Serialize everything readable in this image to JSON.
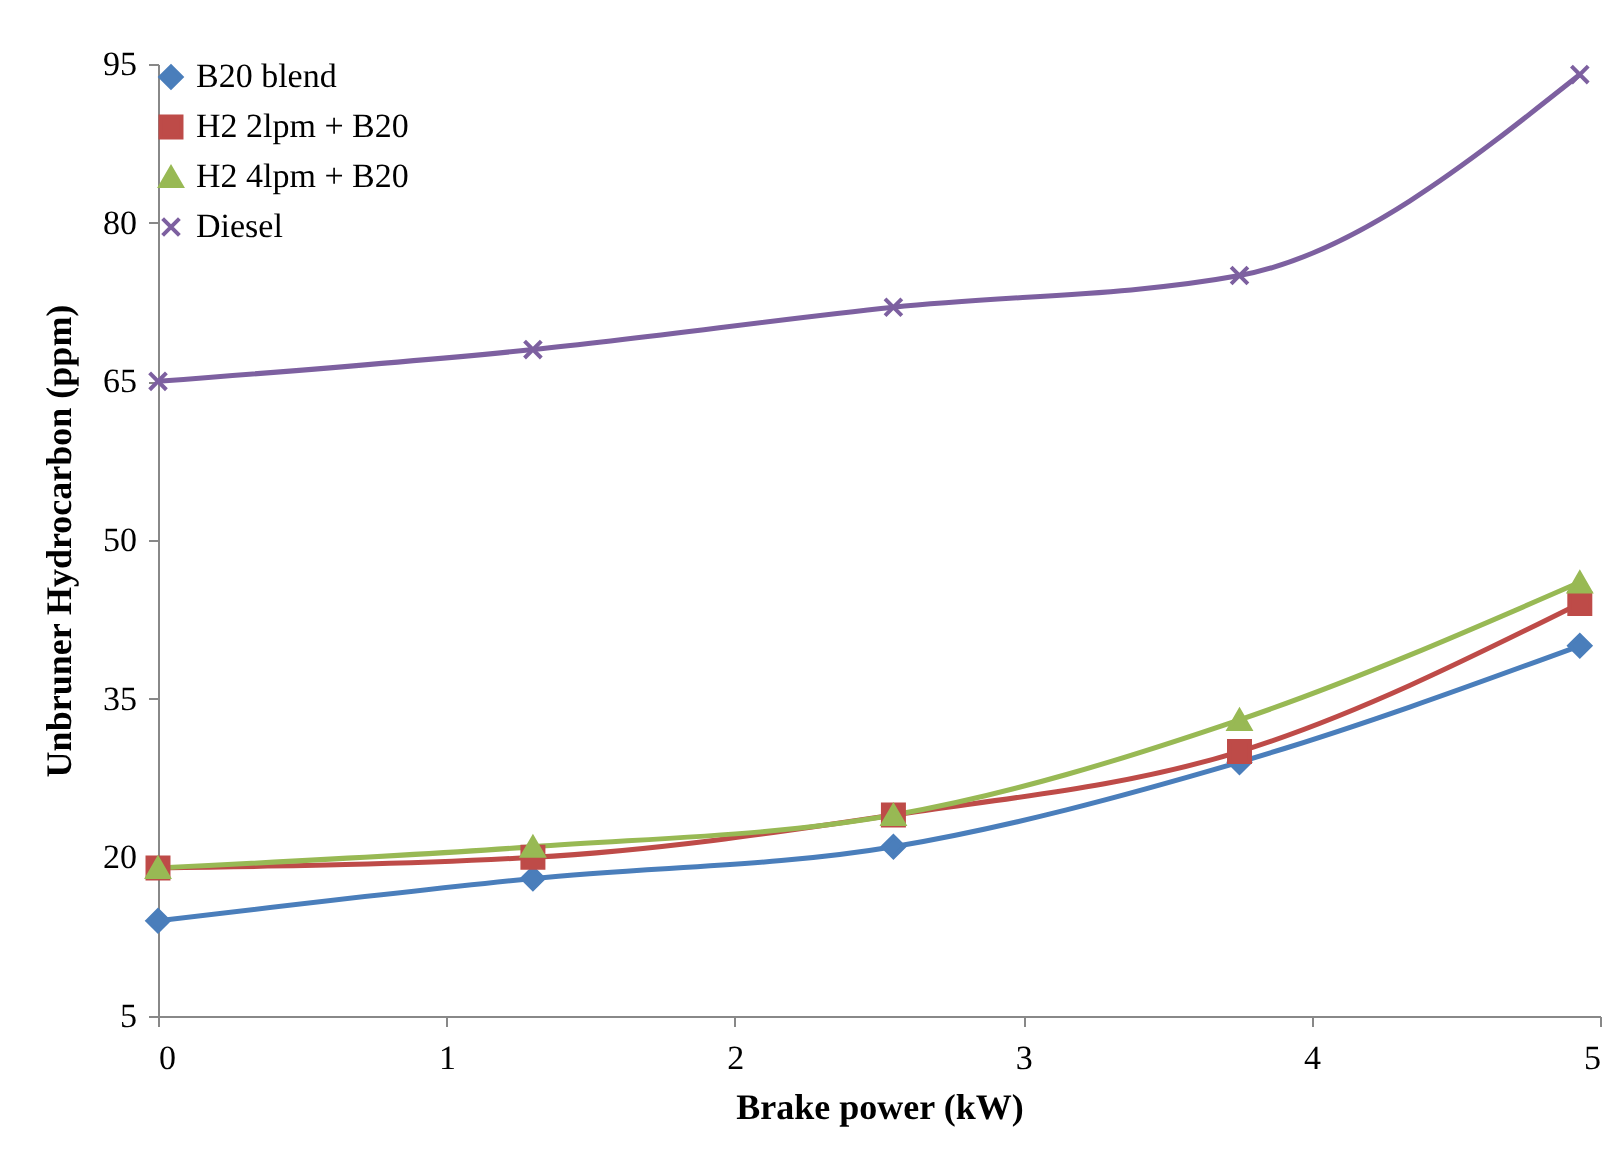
{
  "chart_data": {
    "type": "line",
    "xlabel": "Brake power (kW)",
    "ylabel": "Unbruner Hydrocarbon (ppm)",
    "x": [
      0,
      1.3,
      2.55,
      3.75,
      4.93
    ],
    "series": [
      {
        "name": "B20 blend",
        "color": "#4a7ebb",
        "marker": "diamond",
        "values": [
          14,
          18,
          21,
          29,
          40
        ]
      },
      {
        "name": "H2 2lpm + B20",
        "color": "#be4b48",
        "marker": "square",
        "values": [
          19,
          20,
          24,
          30,
          44
        ]
      },
      {
        "name": "H2 4lpm + B20",
        "color": "#98b954",
        "marker": "triangle",
        "values": [
          19,
          21,
          24,
          33,
          46
        ]
      },
      {
        "name": "Diesel",
        "color": "#7d60a0",
        "marker": "cross",
        "values": [
          65,
          68,
          72,
          75,
          94
        ]
      }
    ],
    "xlim": [
      0,
      5
    ],
    "xticks": [
      0,
      1,
      2,
      3,
      4,
      5
    ],
    "ylim": [
      5,
      95
    ],
    "yticks": [
      5,
      20,
      35,
      50,
      65,
      80,
      95
    ],
    "legend": "top left",
    "grid": false,
    "line_style": "solid"
  }
}
